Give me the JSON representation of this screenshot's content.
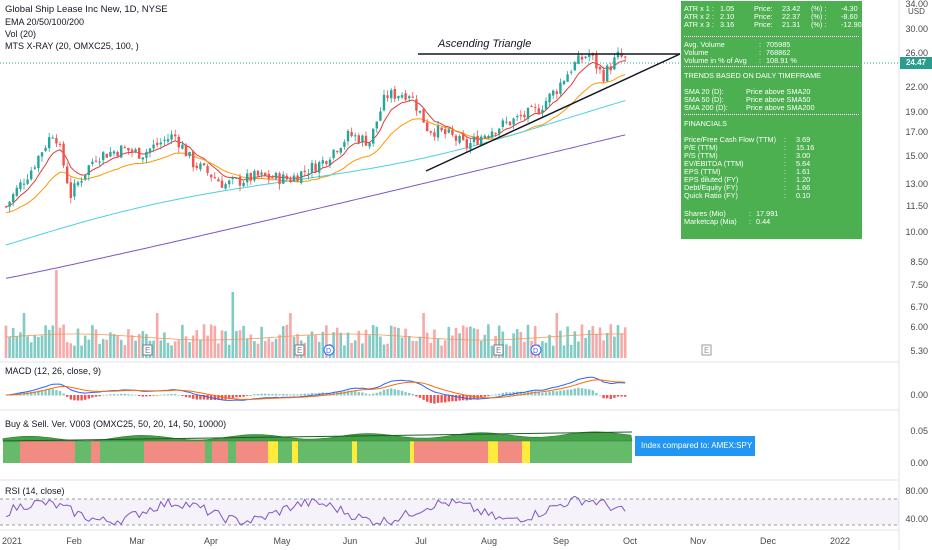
{
  "header": {
    "title": "Global Ship Lease Inc New, 1D, NYSE",
    "ema": "EMA 20/50/100/200",
    "vol": "Vol (20)",
    "xray": "MTS X-RAY (20, OMXC25, 100, )"
  },
  "annotation": {
    "pattern": "Ascending Triangle"
  },
  "panes": {
    "macd": "MACD (12, 26, close, 9)",
    "buysell": "Buy & Sell. Ver. V003 (OMXC25, 50, 20, 14, 50, 10000)",
    "rsi": "RSI (14, close)",
    "callout": "Index compared to: AMEX:SPY"
  },
  "price_axis": {
    "currency": "USD",
    "ticks": [
      "34.00",
      "30.00",
      "26.00",
      "22.00",
      "19.00",
      "17.00",
      "15.00",
      "13.00",
      "11.50",
      "10.00",
      "8.50",
      "7.50",
      "6.70",
      "6.00",
      "5.30"
    ],
    "last_price": "24.47"
  },
  "macd_axis": {
    "ticks": [
      "0.00"
    ]
  },
  "buysell_axis": {
    "ticks": [
      "0.05",
      "0.00"
    ]
  },
  "rsi_axis": {
    "ticks": [
      "80.00",
      "40.00"
    ]
  },
  "x_axis": {
    "ticks": [
      "2021",
      "Feb",
      "Mar",
      "Apr",
      "May",
      "Jun",
      "Jul",
      "Aug",
      "Sep",
      "Oct",
      "Nov",
      "Dec",
      "2022"
    ]
  },
  "info_box": {
    "atr": [
      {
        "label": "ATR x 1 :",
        "atr": "1.05",
        "plabel": "Price:",
        "price": "23.42",
        "pct_label": "(%) :",
        "pct": "-4.30"
      },
      {
        "label": "ATR x 2 :",
        "atr": "2.10",
        "plabel": "Price:",
        "price": "22.37",
        "pct_label": "(%) :",
        "pct": "-8.60"
      },
      {
        "label": "ATR x 3 :",
        "atr": "3.16",
        "plabel": "Price:",
        "price": "21.31",
        "pct_label": "(%) :",
        "pct": "-12.90"
      }
    ],
    "volume": [
      {
        "label": "Avg. Volume",
        "sep": ":",
        "value": "705985"
      },
      {
        "label": "Volume",
        "sep": ":",
        "value": "768862"
      },
      {
        "label": "Volume in % of Avg",
        "sep": ":",
        "value": "108.91 %"
      }
    ],
    "trends_title": "TRENDS BASED ON DAILY TIMEFRAME",
    "trends": [
      {
        "label": "SMA 20 (D):",
        "value": "Price above SMA20"
      },
      {
        "label": "SMA 50 (D):",
        "value": "Price above SMA50"
      },
      {
        "label": "SMA 200 (D):",
        "value": "Price above SMA200"
      }
    ],
    "financials_title": "FINANCIALS",
    "financials": [
      {
        "label": "Price/Free Cash Flow (TTM)",
        "sep": ":",
        "value": "3.69"
      },
      {
        "label": "P/E (TTM)",
        "sep": ":",
        "value": "15.16"
      },
      {
        "label": "P/S (TTM)",
        "sep": ":",
        "value": "3.00"
      },
      {
        "label": "EV/EBITDA (TTM)",
        "sep": ":",
        "value": "5.64"
      },
      {
        "label": "EPS (TTM)",
        "sep": ":",
        "value": "1.61"
      },
      {
        "label": "EPS diluted (FY)",
        "sep": ":",
        "value": "1.20"
      },
      {
        "label": "Debt/Equity (FY)",
        "sep": ":",
        "value": "1.66"
      },
      {
        "label": "Quick Ratio (FY)",
        "sep": ":",
        "value": "0.10"
      }
    ],
    "shares": [
      {
        "label": "Shares (Mio)",
        "sep": ":",
        "value": "17.991"
      },
      {
        "label": "Marketcap (Mia)",
        "sep": ":",
        "value": "0.44"
      }
    ]
  },
  "colors": {
    "up": "#26a69a",
    "down": "#ef5350",
    "ema20": "#e53935",
    "ema50": "#ff9800",
    "ema100": "#4dd0e1",
    "ema200": "#7e57c2",
    "info_green": "#4caf50",
    "last_price": "#2a9d8f"
  },
  "chart_data": {
    "type": "candlestick",
    "price_range": [
      5.0,
      36.0
    ],
    "scale": "log",
    "last_price": 24.47,
    "close_path": [
      {
        "date": "2021-01-04",
        "close": 11.3
      },
      {
        "date": "2021-01-15",
        "close": 13.8
      },
      {
        "date": "2021-01-25",
        "close": 17.0
      },
      {
        "date": "2021-02-01",
        "close": 12.0
      },
      {
        "date": "2021-02-12",
        "close": 14.8
      },
      {
        "date": "2021-02-24",
        "close": 15.4
      },
      {
        "date": "2021-03-04",
        "close": 15.0
      },
      {
        "date": "2021-03-18",
        "close": 16.6
      },
      {
        "date": "2021-03-26",
        "close": 14.3
      },
      {
        "date": "2021-04-09",
        "close": 12.7
      },
      {
        "date": "2021-04-23",
        "close": 13.3
      },
      {
        "date": "2021-05-07",
        "close": 13.1
      },
      {
        "date": "2021-05-21",
        "close": 14.3
      },
      {
        "date": "2021-06-02",
        "close": 16.6
      },
      {
        "date": "2021-06-11",
        "close": 16.0
      },
      {
        "date": "2021-06-18",
        "close": 20.5
      },
      {
        "date": "2021-06-28",
        "close": 20.8
      },
      {
        "date": "2021-07-06",
        "close": 17.2
      },
      {
        "date": "2021-07-16",
        "close": 16.5
      },
      {
        "date": "2021-07-23",
        "close": 15.6
      },
      {
        "date": "2021-08-02",
        "close": 17.0
      },
      {
        "date": "2021-08-13",
        "close": 18.0
      },
      {
        "date": "2021-08-23",
        "close": 19.0
      },
      {
        "date": "2021-08-31",
        "close": 21.2
      },
      {
        "date": "2021-09-07",
        "close": 24.0
      },
      {
        "date": "2021-09-14",
        "close": 25.7
      },
      {
        "date": "2021-09-20",
        "close": 22.7
      },
      {
        "date": "2021-09-27",
        "close": 25.4
      },
      {
        "date": "2021-10-01",
        "close": 24.47
      }
    ],
    "ascending_triangle": {
      "resistance": 25.5,
      "support_start": {
        "date": "2021-07-14",
        "price": 14.0
      },
      "support_end": {
        "date": "2021-10-01",
        "price": 25.5
      }
    }
  }
}
